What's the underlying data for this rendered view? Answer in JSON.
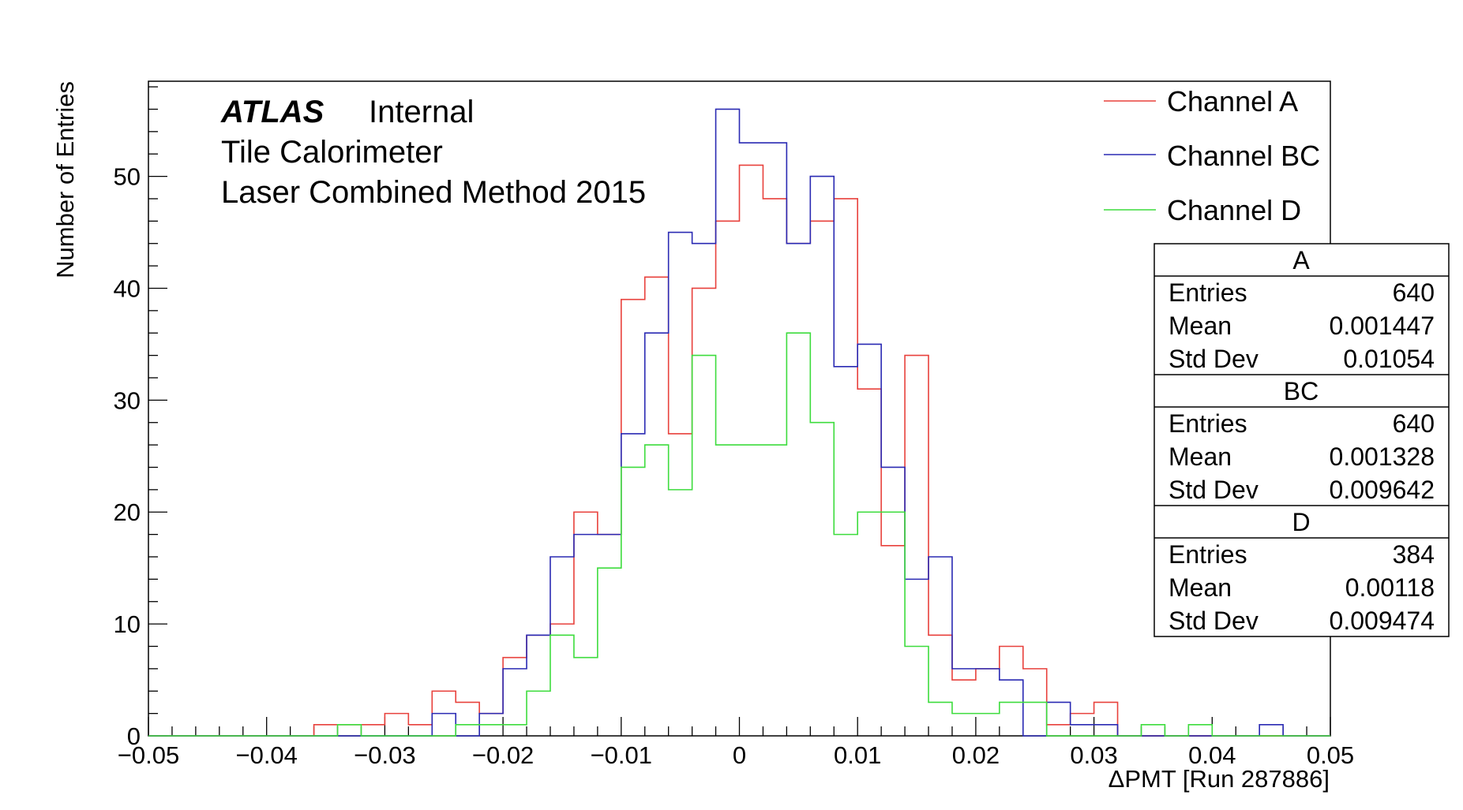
{
  "chart_data": {
    "type": "histogram",
    "xlabel": "ΔPMT [Run 287886]",
    "ylabel": "Number of Entries",
    "xlim": [
      -0.05,
      0.05
    ],
    "ylim": [
      0,
      58.5
    ],
    "bin_width": 0.002,
    "x_ticks": [
      "−0.05",
      "−0.04",
      "−0.03",
      "−0.02",
      "−0.01",
      "0",
      "0.01",
      "0.02",
      "0.03",
      "0.04",
      "0.05"
    ],
    "y_ticks": [
      "0",
      "10",
      "20",
      "30",
      "40",
      "50"
    ],
    "header": {
      "atlas": "ATLAS",
      "status": "Internal",
      "line2": "Tile Calorimeter",
      "line3": "Laser Combined Method 2015"
    },
    "series": [
      {
        "name": "Channel A",
        "color": "#e8413c",
        "values": [
          0,
          0,
          0,
          0,
          0,
          0,
          0,
          1,
          1,
          1,
          2,
          1,
          4,
          3,
          2,
          7,
          9,
          10,
          20,
          18,
          39,
          41,
          27,
          40,
          46,
          51,
          48,
          44,
          46,
          48,
          31,
          17,
          34,
          9,
          5,
          6,
          8,
          6,
          1,
          2,
          3,
          0,
          0,
          0,
          0,
          0,
          0,
          0,
          0,
          0
        ]
      },
      {
        "name": "Channel BC",
        "color": "#2a2ab3",
        "values": [
          0,
          0,
          0,
          0,
          0,
          0,
          0,
          0,
          0,
          0,
          0,
          0,
          2,
          0,
          2,
          6,
          9,
          16,
          18,
          18,
          27,
          36,
          45,
          44,
          56,
          53,
          53,
          44,
          50,
          33,
          35,
          24,
          14,
          16,
          6,
          6,
          5,
          0,
          3,
          1,
          1,
          0,
          0,
          0,
          0,
          0,
          0,
          1,
          0,
          0
        ]
      },
      {
        "name": "Channel D",
        "color": "#3ddc3d",
        "values": [
          0,
          0,
          0,
          0,
          0,
          0,
          0,
          0,
          1,
          0,
          0,
          0,
          0,
          1,
          1,
          1,
          4,
          9,
          7,
          15,
          24,
          26,
          22,
          34,
          26,
          26,
          26,
          36,
          28,
          18,
          20,
          20,
          8,
          3,
          2,
          2,
          3,
          3,
          0,
          0,
          0,
          0,
          1,
          0,
          1,
          0,
          0,
          0,
          0,
          0
        ]
      }
    ],
    "legend": [
      "Channel A",
      "Channel BC",
      "Channel D"
    ],
    "stats": [
      {
        "name": "A",
        "entries_label": "Entries",
        "entries": "640",
        "mean_label": "Mean",
        "mean": "0.001447",
        "std_label": "Std Dev",
        "std": "0.01054"
      },
      {
        "name": "BC",
        "entries_label": "Entries",
        "entries": "640",
        "mean_label": "Mean",
        "mean": "0.001328",
        "std_label": "Std Dev",
        "std": "0.009642"
      },
      {
        "name": "D",
        "entries_label": "Entries",
        "entries": "384",
        "mean_label": "Mean",
        "mean": "0.00118",
        "std_label": "Std Dev",
        "std": "0.009474"
      }
    ]
  }
}
